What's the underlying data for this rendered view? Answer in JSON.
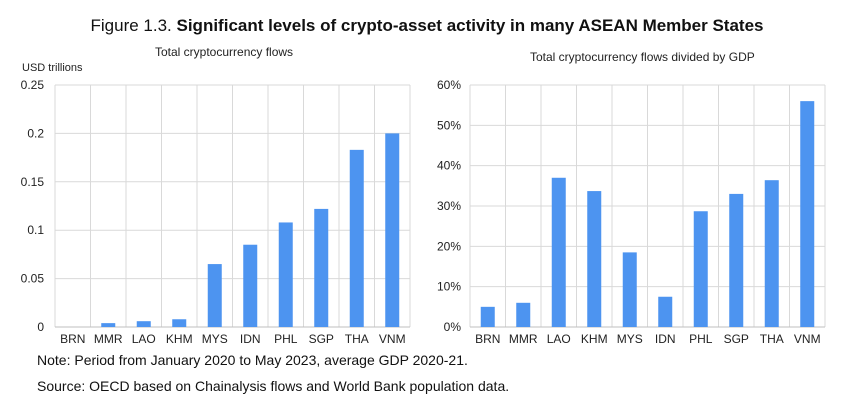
{
  "figure": {
    "prefix": "Figure 1.3. ",
    "title": "Significant levels of crypto-asset activity in many ASEAN Member States"
  },
  "notes": {
    "period": "Note: Period from January 2020 to May 2023, average GDP 2020-21.",
    "source": "Source: OECD based on Chainalysis flows and World Bank population data."
  },
  "colors": {
    "bar": "#4d94f0",
    "grid": "#d9d9d9",
    "axis": "#bfbfbf"
  },
  "chart_data": [
    {
      "type": "bar",
      "title": "Total cryptocurrency flows",
      "ylabel": "USD trillions",
      "xlabel": "",
      "categories": [
        "BRN",
        "MMR",
        "LAO",
        "KHM",
        "MYS",
        "IDN",
        "PHL",
        "SGP",
        "THA",
        "VNM"
      ],
      "values": [
        0.0,
        0.004,
        0.006,
        0.008,
        0.065,
        0.085,
        0.108,
        0.122,
        0.183,
        0.2
      ],
      "ylim": [
        0,
        0.25
      ],
      "yticks": [
        "0",
        "0.05",
        "0.1",
        "0.15",
        "0.2",
        "0.25"
      ],
      "ytick_values": [
        0,
        0.05,
        0.1,
        0.15,
        0.2,
        0.25
      ],
      "grid": true
    },
    {
      "type": "bar",
      "title": "Total cryptocurrency flows divided by GDP",
      "ylabel": "",
      "xlabel": "",
      "categories": [
        "BRN",
        "MMR",
        "LAO",
        "KHM",
        "MYS",
        "IDN",
        "PHL",
        "SGP",
        "THA",
        "VNM"
      ],
      "values": [
        5,
        6,
        37,
        33.7,
        18.5,
        7.5,
        28.7,
        33,
        36.4,
        56
      ],
      "ylim": [
        0,
        60
      ],
      "yticks": [
        "0%",
        "10%",
        "20%",
        "30%",
        "40%",
        "50%",
        "60%"
      ],
      "ytick_values": [
        0,
        10,
        20,
        30,
        40,
        50,
        60
      ],
      "grid": true
    }
  ]
}
